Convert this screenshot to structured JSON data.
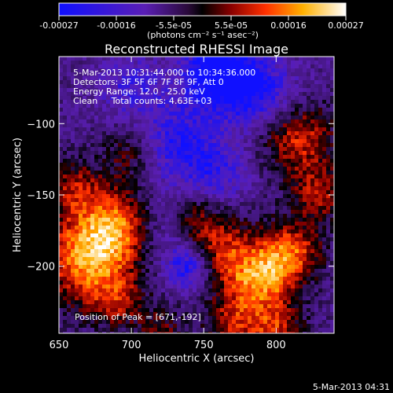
{
  "chart_data": {
    "type": "heatmap",
    "title": "Reconstructed RHESSI Image",
    "xlabel": "Heliocentric X (arcsec)",
    "ylabel": "Heliocentric Y (arcsec)",
    "xlim": [
      650,
      840
    ],
    "ylim": [
      -247,
      -53
    ],
    "x_ticks": [
      650,
      700,
      750,
      800
    ],
    "y_ticks": [
      -100,
      -150,
      -200
    ],
    "colorbar": {
      "ticks": [
        "-0.00027",
        "-0.00016",
        "-5.5e-05",
        "5.5e-05",
        "0.00016",
        "0.00027"
      ],
      "range": [
        -0.00027,
        0.00027
      ],
      "unit_label": "(photons cm⁻² s⁻¹ asec⁻²)"
    },
    "annotations": {
      "time_range": "5-Mar-2013 10:31:44.000 to 10:34:36.000",
      "detectors": "Detectors: 3F 5F 6F 7F 8F 9F, Att 0",
      "energy": "Energy Range: 12.0 - 25.0 keV",
      "clean": "Clean     Total counts: 4.63E+03",
      "peak": "Position of Peak = [671,-192]"
    },
    "peak": [
      671,
      -192
    ],
    "timestamp": "5-Mar-2013 04:31"
  }
}
